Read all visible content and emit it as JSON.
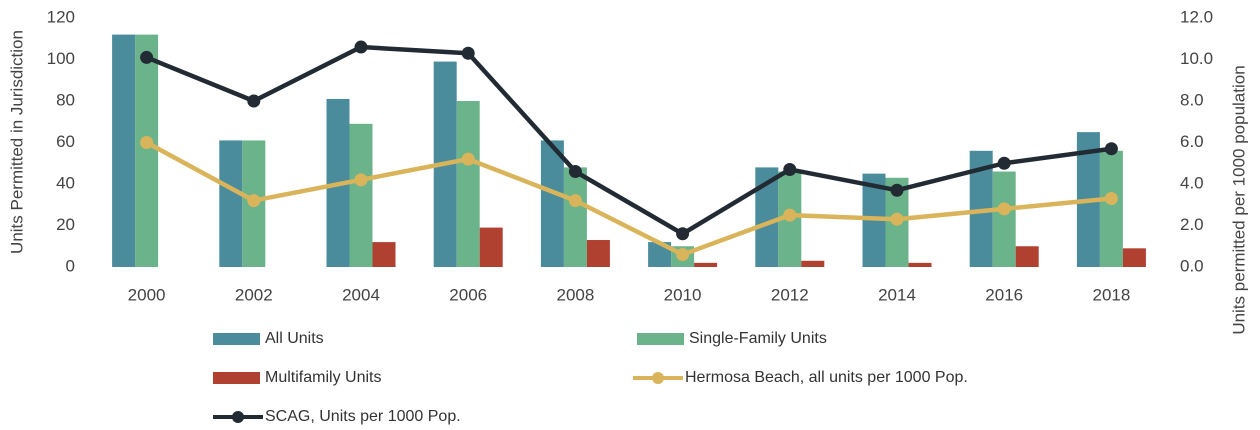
{
  "chart_data": {
    "type": "combo",
    "categories": [
      "2000",
      "2002",
      "2004",
      "2006",
      "2008",
      "2010",
      "2012",
      "2014",
      "2016",
      "2018"
    ],
    "ylabel": "Units Permitted in Jurisdiction",
    "y2label": "Units permitted per 1000 population",
    "ylim": [
      0,
      120
    ],
    "yticks": [
      0,
      20,
      40,
      60,
      80,
      100,
      120
    ],
    "y2lim": [
      0,
      12
    ],
    "y2ticks": [
      {
        "value": 0,
        "label": "0.0"
      },
      {
        "value": 2,
        "label": "2.0"
      },
      {
        "value": 4,
        "label": "4.0"
      },
      {
        "value": 6,
        "label": "6.0"
      },
      {
        "value": 8,
        "label": "8.0"
      },
      {
        "value": 10,
        "label": "10.0"
      },
      {
        "value": 12,
        "label": "12.0"
      }
    ],
    "series": [
      {
        "name": "All Units",
        "type": "bar",
        "color": "#4a8c9c",
        "values": [
          112,
          61,
          81,
          99,
          61,
          12,
          48,
          45,
          56,
          65
        ]
      },
      {
        "name": "Single-Family Units",
        "type": "bar",
        "color": "#6bb38a",
        "values": [
          112,
          61,
          69,
          80,
          48,
          10,
          46,
          43,
          46,
          56
        ]
      },
      {
        "name": "Multifamily Units",
        "type": "bar",
        "color": "#b0402f",
        "values": [
          0,
          0,
          12,
          19,
          13,
          2,
          3,
          2,
          10,
          9
        ]
      },
      {
        "name": "Hermosa Beach, all units per 1000 Pop.",
        "type": "line",
        "axis": "y2",
        "color": "#d9b45a",
        "values": [
          6.0,
          3.2,
          4.2,
          5.2,
          3.2,
          0.6,
          2.5,
          2.3,
          2.8,
          3.3
        ]
      },
      {
        "name": "SCAG, Units per 1000 Pop.",
        "type": "line",
        "axis": "y2",
        "color": "#222b33",
        "values": [
          10.1,
          8.0,
          10.6,
          10.3,
          4.6,
          1.6,
          4.7,
          3.7,
          5.0,
          5.7
        ]
      }
    ]
  }
}
